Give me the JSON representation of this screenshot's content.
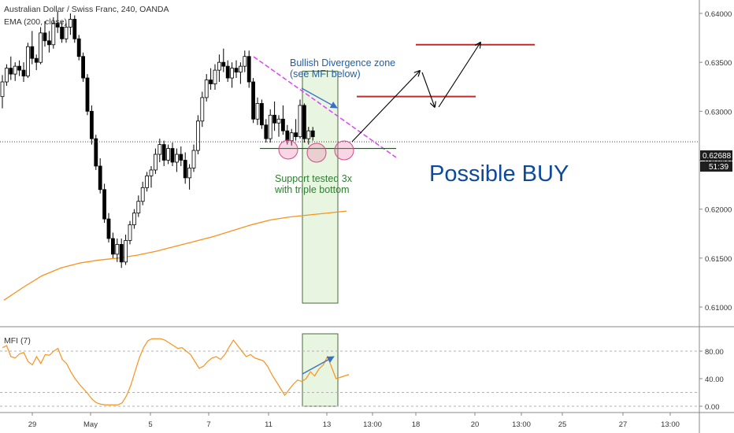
{
  "header": {
    "symbol_line": "Australian Dollar / Swiss Franc, 240, OANDA",
    "ema_label": "EMA (200, close)",
    "mfi_label": "MFI (7)"
  },
  "price_tag": {
    "value": "0.62688",
    "countdown": "51:39"
  },
  "annotations": {
    "divergence_line1": "Bullish Divergence zone",
    "divergence_line2": "(see MFI below)",
    "support_line1": "Support tested 3x",
    "support_line2": "with triple bottom",
    "possible_buy": "Possible BUY"
  },
  "colors": {
    "up_candle": "#ffffff",
    "down_candle": "#000000",
    "ema": "#f7931e",
    "mfi": "#f7931e",
    "trendline": "#e040fb",
    "resistance": "#c62828",
    "divergence_text": "#1f5fa6",
    "support_text": "#2e7d32",
    "zone_fill": "#e8f5e0",
    "buy_text": "#0d4a9a"
  },
  "chart_data": [
    {
      "type": "candlestick",
      "title": "Australian Dollar / Swiss Franc, 240, OANDA",
      "x_tick_labels": [
        "29",
        "May",
        "5",
        "7",
        "11",
        "13",
        "13:00",
        "18",
        "20",
        "13:00",
        "25",
        "27",
        "13:00"
      ],
      "y_tick_labels": [
        "0.64000",
        "0.63500",
        "0.63000",
        "0.62500",
        "0.62000",
        "0.61500",
        "0.61000"
      ],
      "ylim": [
        0.6085,
        0.6435
      ],
      "candles": [
        [
          0.6315,
          0.6337,
          0.6303,
          0.633
        ],
        [
          0.633,
          0.6348,
          0.6326,
          0.6344
        ],
        [
          0.6344,
          0.6356,
          0.6332,
          0.6338
        ],
        [
          0.6338,
          0.635,
          0.6331,
          0.6346
        ],
        [
          0.6346,
          0.6352,
          0.6336,
          0.6342
        ],
        [
          0.6342,
          0.635,
          0.633,
          0.6336
        ],
        [
          0.6336,
          0.637,
          0.6334,
          0.6366
        ],
        [
          0.6366,
          0.6382,
          0.6348,
          0.6354
        ],
        [
          0.6354,
          0.6358,
          0.6342,
          0.635
        ],
        [
          0.635,
          0.6386,
          0.6348,
          0.638
        ],
        [
          0.638,
          0.6392,
          0.6366,
          0.6372
        ],
        [
          0.6372,
          0.6382,
          0.636,
          0.6368
        ],
        [
          0.6368,
          0.6396,
          0.6364,
          0.639
        ],
        [
          0.639,
          0.6402,
          0.638,
          0.6386
        ],
        [
          0.6386,
          0.6392,
          0.637,
          0.6374
        ],
        [
          0.6374,
          0.639,
          0.637,
          0.6386
        ],
        [
          0.6386,
          0.64,
          0.6378,
          0.6394
        ],
        [
          0.6394,
          0.6398,
          0.637,
          0.6374
        ],
        [
          0.6374,
          0.6378,
          0.6352,
          0.6356
        ],
        [
          0.6356,
          0.636,
          0.633,
          0.6334
        ],
        [
          0.6334,
          0.6338,
          0.6296,
          0.63
        ],
        [
          0.63,
          0.6306,
          0.6266,
          0.6272
        ],
        [
          0.6272,
          0.6276,
          0.624,
          0.6244
        ],
        [
          0.6244,
          0.6252,
          0.6216,
          0.622
        ],
        [
          0.622,
          0.6226,
          0.6186,
          0.619
        ],
        [
          0.619,
          0.6196,
          0.6166,
          0.617
        ],
        [
          0.617,
          0.6176,
          0.615,
          0.6154
        ],
        [
          0.6154,
          0.617,
          0.6146,
          0.6164
        ],
        [
          0.6164,
          0.617,
          0.614,
          0.6146
        ],
        [
          0.6146,
          0.6174,
          0.6143,
          0.6168
        ],
        [
          0.6168,
          0.6188,
          0.6164,
          0.6184
        ],
        [
          0.6184,
          0.62,
          0.618,
          0.6196
        ],
        [
          0.6196,
          0.6214,
          0.6192,
          0.6208
        ],
        [
          0.6208,
          0.6228,
          0.6204,
          0.6222
        ],
        [
          0.6222,
          0.6238,
          0.6218,
          0.6234
        ],
        [
          0.6234,
          0.6244,
          0.6222,
          0.624
        ],
        [
          0.624,
          0.6262,
          0.6236,
          0.6256
        ],
        [
          0.6256,
          0.6272,
          0.6248,
          0.6266
        ],
        [
          0.6266,
          0.627,
          0.6244,
          0.625
        ],
        [
          0.625,
          0.6266,
          0.6246,
          0.6262
        ],
        [
          0.6262,
          0.6268,
          0.6244,
          0.6248
        ],
        [
          0.6248,
          0.6262,
          0.6238,
          0.6256
        ],
        [
          0.6256,
          0.6264,
          0.6244,
          0.625
        ],
        [
          0.625,
          0.6258,
          0.6226,
          0.6232
        ],
        [
          0.6232,
          0.6246,
          0.622,
          0.6242
        ],
        [
          0.6242,
          0.6266,
          0.6238,
          0.626
        ],
        [
          0.626,
          0.6296,
          0.6256,
          0.629
        ],
        [
          0.629,
          0.632,
          0.6284,
          0.6314
        ],
        [
          0.6314,
          0.6338,
          0.631,
          0.6332
        ],
        [
          0.6332,
          0.6344,
          0.6322,
          0.6328
        ],
        [
          0.6328,
          0.6348,
          0.6322,
          0.6342
        ],
        [
          0.6342,
          0.6358,
          0.633,
          0.635
        ],
        [
          0.635,
          0.6364,
          0.634,
          0.6346
        ],
        [
          0.6346,
          0.6352,
          0.633,
          0.6334
        ],
        [
          0.6334,
          0.635,
          0.6324,
          0.6344
        ],
        [
          0.6344,
          0.6352,
          0.6334,
          0.634
        ],
        [
          0.634,
          0.635,
          0.6328,
          0.6346
        ],
        [
          0.6346,
          0.6362,
          0.634,
          0.6356
        ],
        [
          0.6356,
          0.6362,
          0.6324,
          0.633
        ],
        [
          0.633,
          0.6334,
          0.6288,
          0.6292
        ],
        [
          0.6292,
          0.6314,
          0.6286,
          0.6308
        ],
        [
          0.6308,
          0.6312,
          0.6282,
          0.6286
        ],
        [
          0.6286,
          0.6292,
          0.6268,
          0.6272
        ],
        [
          0.6272,
          0.6302,
          0.6268,
          0.6296
        ],
        [
          0.6296,
          0.631,
          0.628,
          0.6288
        ],
        [
          0.6288,
          0.6296,
          0.6274,
          0.6292
        ],
        [
          0.6292,
          0.6306,
          0.6276,
          0.628
        ],
        [
          0.628,
          0.6286,
          0.6266,
          0.627
        ],
        [
          0.627,
          0.6282,
          0.6265,
          0.6278
        ],
        [
          0.6278,
          0.6292,
          0.627,
          0.6274
        ],
        [
          0.6274,
          0.6312,
          0.6272,
          0.6306
        ],
        [
          0.6306,
          0.6308,
          0.6268,
          0.6272
        ],
        [
          0.6272,
          0.6284,
          0.6266,
          0.628
        ],
        [
          0.628,
          0.6284,
          0.627,
          0.6274
        ]
      ],
      "series": [
        {
          "name": "EMA (200, close)",
          "values": [
            0.6107,
            0.612,
            0.6132,
            0.614,
            0.6145,
            0.6148,
            0.615,
            0.6153,
            0.6157,
            0.6162,
            0.6167,
            0.6172,
            0.6178,
            0.6184,
            0.6189,
            0.6192,
            0.6194,
            0.6196,
            0.6198
          ]
        }
      ],
      "annotations": {
        "trendline_from": [
          0.6383,
          "candle 54"
        ],
        "trendline_to": [
          0.6262,
          "candle 84"
        ],
        "resistance_1": 0.6315,
        "resistance_2": 0.6368,
        "support": 0.6262,
        "current_price": 0.62688,
        "divergence_zone": [
          0.6104,
          0.6341
        ]
      }
    },
    {
      "type": "line",
      "title": "MFI (7)",
      "y_tick_labels": [
        "80.00",
        "40.00",
        "0.00"
      ],
      "ylim": [
        -3,
        106
      ],
      "values": [
        85,
        88,
        72,
        70,
        76,
        78,
        65,
        60,
        72,
        62,
        75,
        74,
        80,
        84,
        68,
        62,
        50,
        40,
        32,
        25,
        18,
        10,
        5,
        3,
        2,
        2,
        2,
        2,
        5,
        15,
        30,
        50,
        70,
        85,
        95,
        98,
        98,
        98,
        96,
        92,
        88,
        84,
        85,
        80,
        75,
        65,
        55,
        58,
        65,
        70,
        72,
        68,
        75,
        86,
        96,
        88,
        80,
        72,
        75,
        70,
        68,
        66,
        58,
        46,
        36,
        26,
        16,
        24,
        32,
        38,
        36,
        40,
        50,
        44,
        54,
        60,
        72,
        56,
        40,
        42,
        44,
        46
      ]
    }
  ]
}
